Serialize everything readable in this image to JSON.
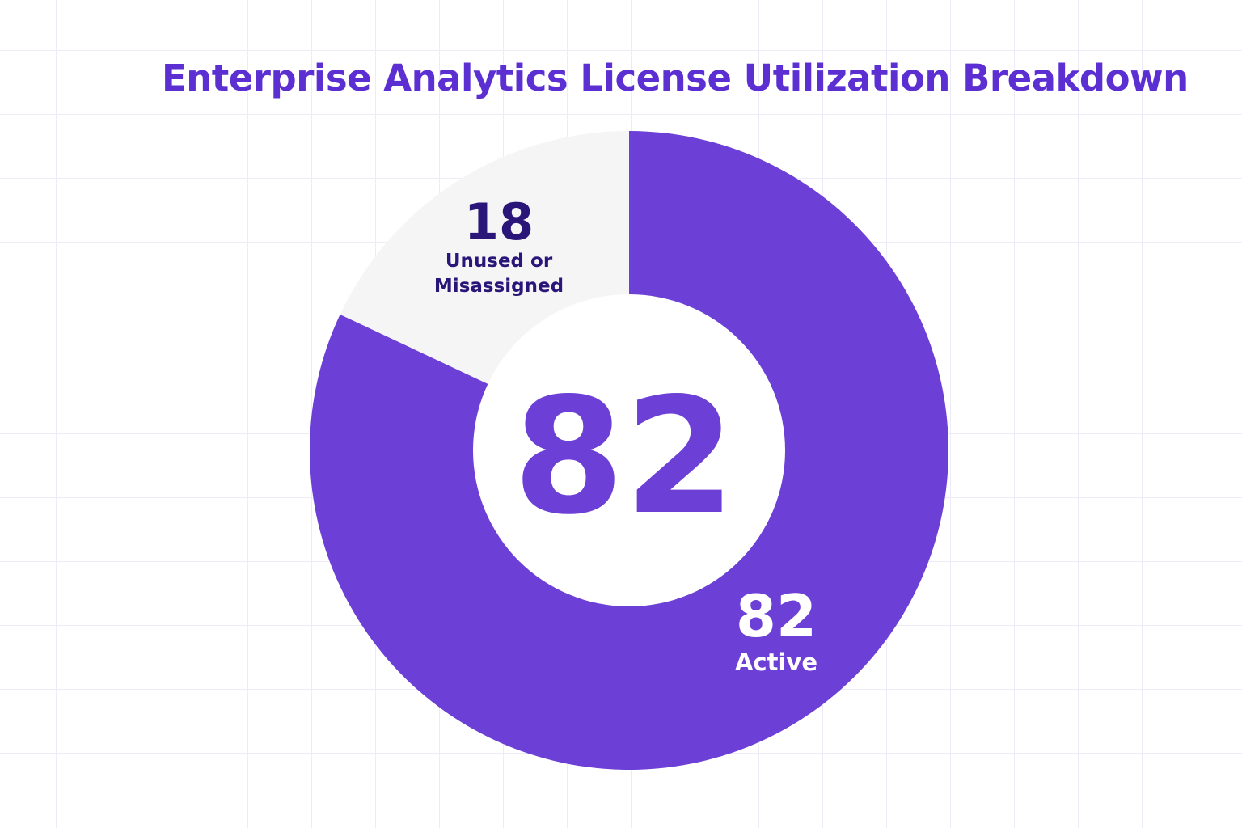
{
  "chart_data": {
    "type": "pie",
    "title": "Enterprise Analytics License Utilization Breakdown",
    "center_value": "82",
    "slices": [
      {
        "label": "Active",
        "value": 82,
        "color": "#6c3fd6",
        "label_color": "#ffffff"
      },
      {
        "label": "Unused or Misassigned",
        "value": 18,
        "color": "#f5f5f6",
        "label_color": "#2a1678"
      }
    ],
    "colors": {
      "title": "#5b2fd2",
      "center_text": "#6c3fd6",
      "hole": "#ffffff"
    }
  }
}
